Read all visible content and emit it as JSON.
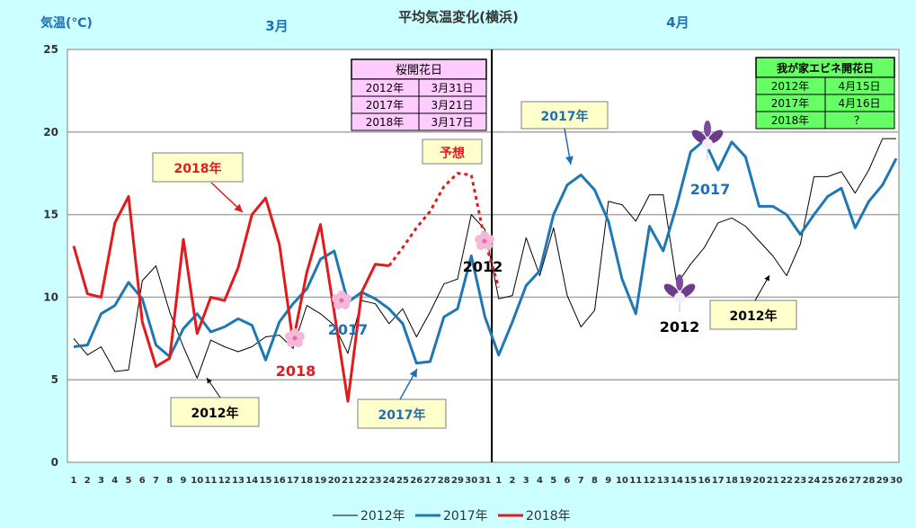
{
  "chart_data": {
    "type": "line",
    "title": "平均気温変化(横浜)",
    "ylabel": "気温(℃)",
    "ylim": [
      0,
      25
    ],
    "yticks": [
      "0",
      "5",
      "10",
      "15",
      "20",
      "25"
    ],
    "month_labels": [
      "3月",
      "4月"
    ],
    "x_labels_march": [
      "1",
      "2",
      "3",
      "4",
      "5",
      "6",
      "7",
      "8",
      "9",
      "10",
      "11",
      "12",
      "13",
      "14",
      "15",
      "16",
      "17",
      "18",
      "19",
      "20",
      "21",
      "22",
      "23",
      "24",
      "25",
      "26",
      "27",
      "28",
      "29",
      "30",
      "31"
    ],
    "x_labels_april": [
      "1",
      "2",
      "3",
      "4",
      "5",
      "6",
      "7",
      "8",
      "9",
      "10",
      "11",
      "12",
      "13",
      "14",
      "15",
      "16",
      "17",
      "18",
      "19",
      "20",
      "21",
      "22",
      "23",
      "24",
      "25",
      "26",
      "27",
      "28",
      "29",
      "30"
    ],
    "grid": true,
    "legend_position": "bottom",
    "series": [
      {
        "name": "2012年",
        "color": "#000000",
        "values": [
          7.5,
          6.5,
          7.0,
          5.5,
          5.6,
          11.0,
          11.9,
          9.1,
          7.0,
          5.1,
          7.4,
          7.0,
          6.7,
          7.0,
          7.6,
          7.7,
          6.9,
          9.5,
          9.0,
          8.3,
          6.6,
          9.8,
          9.6,
          8.4,
          9.3,
          7.6,
          9.1,
          10.8,
          11.1,
          15.0,
          14.1,
          9.9,
          10.1,
          13.6,
          11.3,
          14.2,
          10.1,
          8.2,
          9.2,
          15.8,
          15.6,
          14.6,
          16.2,
          16.2,
          10.8,
          12.0,
          13.0,
          14.5,
          14.8,
          14.3,
          13.4,
          12.5,
          11.3,
          13.2,
          17.3,
          17.3,
          17.6,
          16.3,
          17.7,
          19.6,
          19.6
        ]
      },
      {
        "name": "2017年",
        "color": "#1f77b4",
        "values": [
          7.0,
          7.1,
          9.0,
          9.5,
          10.9,
          9.9,
          7.1,
          6.4,
          8.1,
          9.0,
          7.9,
          8.2,
          8.7,
          8.3,
          6.2,
          8.5,
          9.6,
          10.5,
          12.3,
          12.8,
          9.7,
          10.3,
          9.9,
          9.3,
          8.4,
          6.0,
          6.1,
          8.8,
          9.3,
          12.5,
          8.8,
          6.5,
          8.5,
          10.7,
          11.6,
          15.0,
          16.8,
          17.4,
          16.5,
          14.6,
          11.1,
          9.0,
          14.3,
          12.8,
          15.6,
          18.8,
          19.5,
          17.7,
          19.4,
          18.5,
          15.5,
          15.5,
          15.0,
          13.8,
          15.0,
          16.1,
          16.6,
          14.2,
          15.8,
          16.8,
          18.4
        ]
      },
      {
        "name": "2018年",
        "color": "#e31a1c",
        "values": [
          13.1,
          10.2,
          10.0,
          14.5,
          16.1,
          8.5,
          5.8,
          6.3,
          13.5,
          7.8,
          10.0,
          9.8,
          11.8,
          15.0,
          16.0,
          13.2,
          7.3,
          11.5,
          14.4,
          9.1,
          3.7,
          10.3,
          12.0,
          11.9,
          null,
          null,
          null,
          null,
          null,
          null,
          null
        ],
        "forecast": [
          null,
          null,
          null,
          null,
          null,
          null,
          null,
          null,
          null,
          null,
          null,
          null,
          null,
          null,
          null,
          null,
          null,
          null,
          null,
          null,
          null,
          null,
          null,
          11.9,
          13.0,
          14.2,
          15.2,
          16.7,
          17.5,
          17.4,
          13.4,
          10.6
        ]
      }
    ],
    "annotations": {
      "label_2018_top": "2018年",
      "label_2012_march": "2012年",
      "label_2017_march": "2017年",
      "label_2017_april": "2017年",
      "label_2012_april": "2012年",
      "forecast_label": "予想",
      "flower_2018": "2018",
      "flower_2017_march": "2017",
      "flower_2012_march": "2012",
      "flower_2017_april": "2017",
      "flower_2012_april": "2012"
    },
    "sakura_table": {
      "header": "桜開花日",
      "rows": [
        [
          "2012年",
          "3月31日"
        ],
        [
          "2017年",
          "3月21日"
        ],
        [
          "2018年",
          "3月17日"
        ]
      ]
    },
    "ebine_table": {
      "header": "我が家エビネ開花日",
      "rows": [
        [
          "2012年",
          "4月15日"
        ],
        [
          "2017年",
          "4月16日"
        ],
        [
          "2018年",
          "？"
        ]
      ]
    }
  }
}
